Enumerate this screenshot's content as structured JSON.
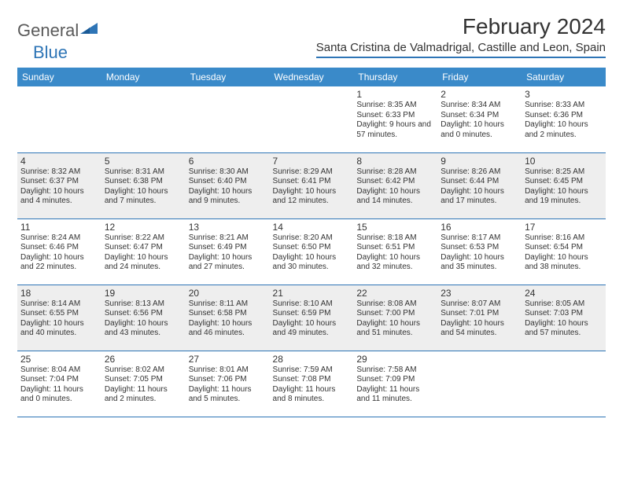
{
  "brand": {
    "part1": "General",
    "part2": "Blue"
  },
  "title": "February 2024",
  "location": "Santa Cristina de Valmadrigal, Castille and Leon, Spain",
  "colors": {
    "header_bg": "#3a8ac9",
    "header_text": "#ffffff",
    "accent": "#2e75b6",
    "alt_row": "#eeeeee",
    "text": "#333333"
  },
  "weekdays": [
    "Sunday",
    "Monday",
    "Tuesday",
    "Wednesday",
    "Thursday",
    "Friday",
    "Saturday"
  ],
  "weeks": [
    {
      "alt": false,
      "cells": [
        null,
        null,
        null,
        null,
        {
          "n": "1",
          "sr": "8:35 AM",
          "ss": "6:33 PM",
          "dl": "9 hours and 57 minutes."
        },
        {
          "n": "2",
          "sr": "8:34 AM",
          "ss": "6:34 PM",
          "dl": "10 hours and 0 minutes."
        },
        {
          "n": "3",
          "sr": "8:33 AM",
          "ss": "6:36 PM",
          "dl": "10 hours and 2 minutes."
        }
      ]
    },
    {
      "alt": true,
      "cells": [
        {
          "n": "4",
          "sr": "8:32 AM",
          "ss": "6:37 PM",
          "dl": "10 hours and 4 minutes."
        },
        {
          "n": "5",
          "sr": "8:31 AM",
          "ss": "6:38 PM",
          "dl": "10 hours and 7 minutes."
        },
        {
          "n": "6",
          "sr": "8:30 AM",
          "ss": "6:40 PM",
          "dl": "10 hours and 9 minutes."
        },
        {
          "n": "7",
          "sr": "8:29 AM",
          "ss": "6:41 PM",
          "dl": "10 hours and 12 minutes."
        },
        {
          "n": "8",
          "sr": "8:28 AM",
          "ss": "6:42 PM",
          "dl": "10 hours and 14 minutes."
        },
        {
          "n": "9",
          "sr": "8:26 AM",
          "ss": "6:44 PM",
          "dl": "10 hours and 17 minutes."
        },
        {
          "n": "10",
          "sr": "8:25 AM",
          "ss": "6:45 PM",
          "dl": "10 hours and 19 minutes."
        }
      ]
    },
    {
      "alt": false,
      "cells": [
        {
          "n": "11",
          "sr": "8:24 AM",
          "ss": "6:46 PM",
          "dl": "10 hours and 22 minutes."
        },
        {
          "n": "12",
          "sr": "8:22 AM",
          "ss": "6:47 PM",
          "dl": "10 hours and 24 minutes."
        },
        {
          "n": "13",
          "sr": "8:21 AM",
          "ss": "6:49 PM",
          "dl": "10 hours and 27 minutes."
        },
        {
          "n": "14",
          "sr": "8:20 AM",
          "ss": "6:50 PM",
          "dl": "10 hours and 30 minutes."
        },
        {
          "n": "15",
          "sr": "8:18 AM",
          "ss": "6:51 PM",
          "dl": "10 hours and 32 minutes."
        },
        {
          "n": "16",
          "sr": "8:17 AM",
          "ss": "6:53 PM",
          "dl": "10 hours and 35 minutes."
        },
        {
          "n": "17",
          "sr": "8:16 AM",
          "ss": "6:54 PM",
          "dl": "10 hours and 38 minutes."
        }
      ]
    },
    {
      "alt": true,
      "cells": [
        {
          "n": "18",
          "sr": "8:14 AM",
          "ss": "6:55 PM",
          "dl": "10 hours and 40 minutes."
        },
        {
          "n": "19",
          "sr": "8:13 AM",
          "ss": "6:56 PM",
          "dl": "10 hours and 43 minutes."
        },
        {
          "n": "20",
          "sr": "8:11 AM",
          "ss": "6:58 PM",
          "dl": "10 hours and 46 minutes."
        },
        {
          "n": "21",
          "sr": "8:10 AM",
          "ss": "6:59 PM",
          "dl": "10 hours and 49 minutes."
        },
        {
          "n": "22",
          "sr": "8:08 AM",
          "ss": "7:00 PM",
          "dl": "10 hours and 51 minutes."
        },
        {
          "n": "23",
          "sr": "8:07 AM",
          "ss": "7:01 PM",
          "dl": "10 hours and 54 minutes."
        },
        {
          "n": "24",
          "sr": "8:05 AM",
          "ss": "7:03 PM",
          "dl": "10 hours and 57 minutes."
        }
      ]
    },
    {
      "alt": false,
      "cells": [
        {
          "n": "25",
          "sr": "8:04 AM",
          "ss": "7:04 PM",
          "dl": "11 hours and 0 minutes."
        },
        {
          "n": "26",
          "sr": "8:02 AM",
          "ss": "7:05 PM",
          "dl": "11 hours and 2 minutes."
        },
        {
          "n": "27",
          "sr": "8:01 AM",
          "ss": "7:06 PM",
          "dl": "11 hours and 5 minutes."
        },
        {
          "n": "28",
          "sr": "7:59 AM",
          "ss": "7:08 PM",
          "dl": "11 hours and 8 minutes."
        },
        {
          "n": "29",
          "sr": "7:58 AM",
          "ss": "7:09 PM",
          "dl": "11 hours and 11 minutes."
        },
        null,
        null
      ]
    }
  ],
  "labels": {
    "sunrise": "Sunrise: ",
    "sunset": "Sunset: ",
    "daylight": "Daylight: "
  }
}
